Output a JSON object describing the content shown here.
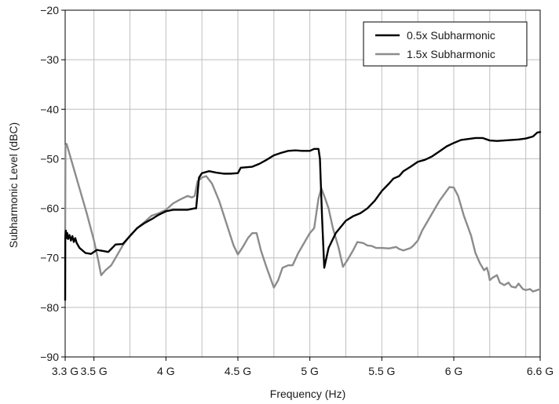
{
  "chart_data": {
    "type": "line",
    "xlabel": "Frequency (Hz)",
    "ylabel": "Subharmonic Level (dBC)",
    "xlim": [
      3.3,
      6.6
    ],
    "ylim": [
      -90,
      -20
    ],
    "x_ticks": [
      {
        "value": 3.3,
        "label": "3.3 G"
      },
      {
        "value": 3.5,
        "label": "3.5 G"
      },
      {
        "value": 4.0,
        "label": "4 G"
      },
      {
        "value": 4.5,
        "label": "4.5 G"
      },
      {
        "value": 5.0,
        "label": "5 G"
      },
      {
        "value": 5.5,
        "label": "5.5 G"
      },
      {
        "value": 6.0,
        "label": "6 G"
      },
      {
        "value": 6.6,
        "label": "6.6 G"
      }
    ],
    "x_grid": [
      3.3,
      3.5,
      3.75,
      4.0,
      4.25,
      4.5,
      4.75,
      5.0,
      5.25,
      5.5,
      5.75,
      6.0,
      6.25,
      6.5,
      6.6
    ],
    "y_ticks": [
      {
        "value": -20,
        "label": "−20"
      },
      {
        "value": -30,
        "label": "−30"
      },
      {
        "value": -40,
        "label": "−40"
      },
      {
        "value": -50,
        "label": "−50"
      },
      {
        "value": -60,
        "label": "−60"
      },
      {
        "value": -70,
        "label": "−70"
      },
      {
        "value": -80,
        "label": "−80"
      },
      {
        "value": -90,
        "label": "−90"
      }
    ],
    "grid": true,
    "legend_position": "top-right",
    "series": [
      {
        "name": "0.5x Subharmonic",
        "color": "#000000",
        "points": [
          [
            3.3,
            -78.5
          ],
          [
            3.301,
            -66.0
          ],
          [
            3.305,
            -64.5
          ],
          [
            3.31,
            -66.0
          ],
          [
            3.315,
            -65.0
          ],
          [
            3.32,
            -66.2
          ],
          [
            3.33,
            -65.4
          ],
          [
            3.34,
            -66.5
          ],
          [
            3.35,
            -65.6
          ],
          [
            3.36,
            -66.8
          ],
          [
            3.37,
            -66.0
          ],
          [
            3.38,
            -67.0
          ],
          [
            3.4,
            -68.0
          ],
          [
            3.44,
            -69.0
          ],
          [
            3.48,
            -69.2
          ],
          [
            3.52,
            -68.4
          ],
          [
            3.56,
            -68.6
          ],
          [
            3.6,
            -68.8
          ],
          [
            3.65,
            -67.3
          ],
          [
            3.7,
            -67.2
          ],
          [
            3.75,
            -65.6
          ],
          [
            3.8,
            -64.0
          ],
          [
            3.85,
            -63.0
          ],
          [
            3.9,
            -62.2
          ],
          [
            3.95,
            -61.3
          ],
          [
            4.0,
            -60.6
          ],
          [
            4.05,
            -60.3
          ],
          [
            4.1,
            -60.3
          ],
          [
            4.15,
            -60.3
          ],
          [
            4.2,
            -60.0
          ],
          [
            4.21,
            -60.0
          ],
          [
            4.23,
            -53.8
          ],
          [
            4.25,
            -52.9
          ],
          [
            4.3,
            -52.5
          ],
          [
            4.35,
            -52.8
          ],
          [
            4.4,
            -53.0
          ],
          [
            4.45,
            -53.0
          ],
          [
            4.5,
            -52.9
          ],
          [
            4.52,
            -51.8
          ],
          [
            4.6,
            -51.6
          ],
          [
            4.65,
            -51.0
          ],
          [
            4.7,
            -50.2
          ],
          [
            4.75,
            -49.3
          ],
          [
            4.8,
            -48.8
          ],
          [
            4.85,
            -48.4
          ],
          [
            4.9,
            -48.3
          ],
          [
            4.95,
            -48.4
          ],
          [
            5.0,
            -48.4
          ],
          [
            5.03,
            -48.0
          ],
          [
            5.06,
            -48.0
          ],
          [
            5.07,
            -50.0
          ],
          [
            5.085,
            -62.0
          ],
          [
            5.1,
            -72.0
          ],
          [
            5.13,
            -68.0
          ],
          [
            5.18,
            -65.0
          ],
          [
            5.25,
            -62.5
          ],
          [
            5.3,
            -61.6
          ],
          [
            5.35,
            -61.0
          ],
          [
            5.4,
            -60.0
          ],
          [
            5.45,
            -58.5
          ],
          [
            5.5,
            -56.5
          ],
          [
            5.55,
            -55.0
          ],
          [
            5.58,
            -54.0
          ],
          [
            5.62,
            -53.5
          ],
          [
            5.65,
            -52.5
          ],
          [
            5.7,
            -51.6
          ],
          [
            5.75,
            -50.6
          ],
          [
            5.8,
            -50.2
          ],
          [
            5.85,
            -49.5
          ],
          [
            5.9,
            -48.5
          ],
          [
            5.95,
            -47.5
          ],
          [
            6.0,
            -46.8
          ],
          [
            6.05,
            -46.2
          ],
          [
            6.1,
            -46.0
          ],
          [
            6.15,
            -45.8
          ],
          [
            6.2,
            -45.8
          ],
          [
            6.25,
            -46.3
          ],
          [
            6.3,
            -46.4
          ],
          [
            6.35,
            -46.3
          ],
          [
            6.4,
            -46.2
          ],
          [
            6.45,
            -46.1
          ],
          [
            6.5,
            -45.9
          ],
          [
            6.55,
            -45.5
          ],
          [
            6.58,
            -44.7
          ],
          [
            6.6,
            -44.6
          ]
        ]
      },
      {
        "name": "1.5x Subharmonic",
        "color": "#8c8c8c",
        "points": [
          [
            3.3,
            -66.0
          ],
          [
            3.302,
            -47.5
          ],
          [
            3.31,
            -47.0
          ],
          [
            3.32,
            -48.0
          ],
          [
            3.35,
            -51.0
          ],
          [
            3.4,
            -56.0
          ],
          [
            3.45,
            -61.0
          ],
          [
            3.5,
            -66.5
          ],
          [
            3.53,
            -70.5
          ],
          [
            3.55,
            -73.5
          ],
          [
            3.58,
            -72.5
          ],
          [
            3.62,
            -71.5
          ],
          [
            3.66,
            -69.5
          ],
          [
            3.7,
            -67.5
          ],
          [
            3.75,
            -65.5
          ],
          [
            3.8,
            -64.0
          ],
          [
            3.85,
            -62.8
          ],
          [
            3.9,
            -61.5
          ],
          [
            3.95,
            -61.0
          ],
          [
            4.0,
            -60.3
          ],
          [
            4.05,
            -59.0
          ],
          [
            4.1,
            -58.2
          ],
          [
            4.15,
            -57.5
          ],
          [
            4.18,
            -57.8
          ],
          [
            4.2,
            -57.5
          ],
          [
            4.22,
            -54.5
          ],
          [
            4.25,
            -53.8
          ],
          [
            4.28,
            -53.5
          ],
          [
            4.32,
            -55.0
          ],
          [
            4.37,
            -58.5
          ],
          [
            4.42,
            -63.0
          ],
          [
            4.47,
            -67.5
          ],
          [
            4.5,
            -69.3
          ],
          [
            4.53,
            -68.0
          ],
          [
            4.57,
            -66.0
          ],
          [
            4.6,
            -65.0
          ],
          [
            4.63,
            -65.0
          ],
          [
            4.66,
            -68.5
          ],
          [
            4.7,
            -72.0
          ],
          [
            4.75,
            -76.0
          ],
          [
            4.78,
            -74.5
          ],
          [
            4.81,
            -72.0
          ],
          [
            4.85,
            -71.5
          ],
          [
            4.88,
            -71.5
          ],
          [
            4.92,
            -69.0
          ],
          [
            4.96,
            -67.0
          ],
          [
            5.0,
            -65.0
          ],
          [
            5.03,
            -64.0
          ],
          [
            5.06,
            -58.0
          ],
          [
            5.08,
            -56.0
          ],
          [
            5.1,
            -57.5
          ],
          [
            5.13,
            -60.0
          ],
          [
            5.16,
            -64.0
          ],
          [
            5.2,
            -68.0
          ],
          [
            5.23,
            -71.8
          ],
          [
            5.26,
            -70.5
          ],
          [
            5.3,
            -68.5
          ],
          [
            5.33,
            -66.8
          ],
          [
            5.37,
            -67.0
          ],
          [
            5.4,
            -67.5
          ],
          [
            5.43,
            -67.6
          ],
          [
            5.46,
            -68.0
          ],
          [
            5.5,
            -68.0
          ],
          [
            5.55,
            -68.1
          ],
          [
            5.6,
            -67.8
          ],
          [
            5.62,
            -68.2
          ],
          [
            5.65,
            -68.5
          ],
          [
            5.7,
            -68.0
          ],
          [
            5.72,
            -67.5
          ],
          [
            5.75,
            -66.5
          ],
          [
            5.78,
            -64.5
          ],
          [
            5.82,
            -62.5
          ],
          [
            5.85,
            -61.0
          ],
          [
            5.9,
            -58.5
          ],
          [
            5.95,
            -56.5
          ],
          [
            5.97,
            -55.7
          ],
          [
            6.0,
            -55.8
          ],
          [
            6.03,
            -57.5
          ],
          [
            6.07,
            -61.5
          ],
          [
            6.12,
            -65.5
          ],
          [
            6.15,
            -69.0
          ],
          [
            6.18,
            -71.0
          ],
          [
            6.21,
            -72.5
          ],
          [
            6.23,
            -72.0
          ],
          [
            6.24,
            -73.0
          ],
          [
            6.25,
            -74.5
          ],
          [
            6.27,
            -74.0
          ],
          [
            6.3,
            -73.5
          ],
          [
            6.32,
            -75.0
          ],
          [
            6.35,
            -75.5
          ],
          [
            6.38,
            -75.0
          ],
          [
            6.4,
            -75.8
          ],
          [
            6.43,
            -76.0
          ],
          [
            6.45,
            -75.2
          ],
          [
            6.48,
            -76.3
          ],
          [
            6.5,
            -76.5
          ],
          [
            6.53,
            -76.3
          ],
          [
            6.55,
            -76.8
          ],
          [
            6.58,
            -76.5
          ],
          [
            6.6,
            -76.3
          ]
        ]
      }
    ]
  }
}
